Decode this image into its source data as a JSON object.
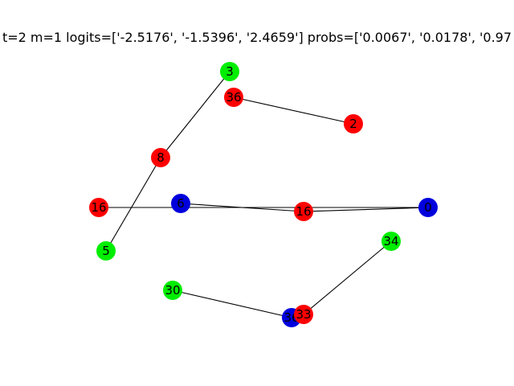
{
  "title": "t=2 m=1 logits=['-2.5176', '-1.5396', '2.4659'] probs=['0.0067', '0.0178', '0.97",
  "colors": {
    "red": "#ff0000",
    "green": "#00ee00",
    "blue": "#0000dd"
  },
  "graph": {
    "nodes": [
      {
        "id": "n3",
        "label": "3",
        "color": "green"
      },
      {
        "id": "n36",
        "label": "36",
        "color": "red"
      },
      {
        "id": "n2",
        "label": "2",
        "color": "red"
      },
      {
        "id": "n8",
        "label": "8",
        "color": "red"
      },
      {
        "id": "n16a",
        "label": "16",
        "color": "red"
      },
      {
        "id": "n6",
        "label": "6",
        "color": "blue"
      },
      {
        "id": "n16b",
        "label": "16",
        "color": "red"
      },
      {
        "id": "n0",
        "label": "0",
        "color": "blue"
      },
      {
        "id": "n5",
        "label": "5",
        "color": "green"
      },
      {
        "id": "n34",
        "label": "34",
        "color": "green"
      },
      {
        "id": "n30",
        "label": "30",
        "color": "green"
      },
      {
        "id": "nb",
        "label": "36",
        "color": "blue"
      },
      {
        "id": "n33",
        "label": "33",
        "color": "red"
      }
    ],
    "edges": [
      [
        "n3",
        "n8"
      ],
      [
        "n8",
        "n5"
      ],
      [
        "n36",
        "n2"
      ],
      [
        "n16a",
        "n0"
      ],
      [
        "n6",
        "n16b"
      ],
      [
        "n16b",
        "n0"
      ],
      [
        "n30",
        "nb"
      ],
      [
        "n33",
        "n34"
      ]
    ]
  }
}
